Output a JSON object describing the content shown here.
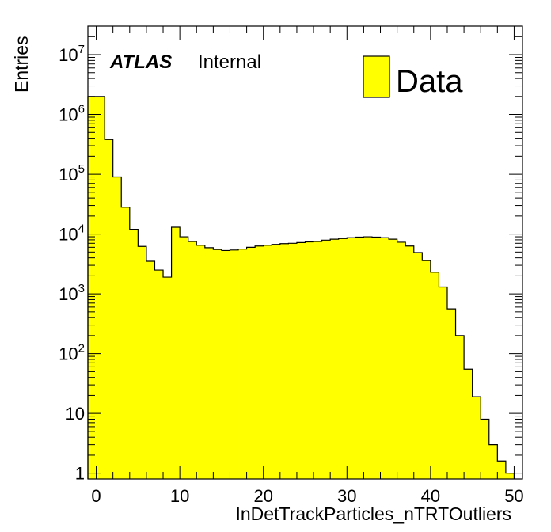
{
  "chart_data": {
    "type": "bar",
    "subtype": "histogram",
    "xlabel": "InDetTrackParticles_nTRTOutliers",
    "ylabel": "Entries",
    "y_scale": "log",
    "xlim": [
      -1,
      51
    ],
    "ylim": [
      0.8,
      30000000
    ],
    "bin_edges_start": -1,
    "bin_width": 1,
    "series": [
      {
        "name": "Data",
        "color": "#ffff00",
        "values": [
          2000000,
          2000000,
          380000,
          90000,
          28000,
          12000,
          6200,
          3500,
          2500,
          1900,
          13000,
          9000,
          7500,
          6500,
          5900,
          5500,
          5300,
          5400,
          5600,
          6000,
          6300,
          6500,
          6700,
          6900,
          7000,
          7200,
          7400,
          7500,
          7900,
          8200,
          8400,
          8700,
          8900,
          9000,
          8900,
          8700,
          8200,
          7300,
          6300,
          4900,
          3600,
          2300,
          1300,
          560,
          200,
          55,
          19,
          8,
          3,
          1.6,
          1
        ]
      }
    ],
    "x_ticks": [
      {
        "value": 0,
        "label": "0"
      },
      {
        "value": 10,
        "label": "10"
      },
      {
        "value": 20,
        "label": "20"
      },
      {
        "value": 30,
        "label": "30"
      },
      {
        "value": 40,
        "label": "40"
      },
      {
        "value": 50,
        "label": "50"
      }
    ],
    "y_ticks": [
      {
        "value": 1,
        "base": "1",
        "exp": ""
      },
      {
        "value": 10,
        "base": "10",
        "exp": ""
      },
      {
        "value": 100,
        "base": "10",
        "exp": "2"
      },
      {
        "value": 1000,
        "base": "10",
        "exp": "3"
      },
      {
        "value": 10000,
        "base": "10",
        "exp": "4"
      },
      {
        "value": 100000,
        "base": "10",
        "exp": "5"
      },
      {
        "value": 1000000,
        "base": "10",
        "exp": "6"
      },
      {
        "value": 10000000,
        "base": "10",
        "exp": "7"
      }
    ],
    "annotation": {
      "experiment": "ATLAS",
      "status": "Internal"
    },
    "legend": {
      "position": "top-right",
      "entries": [
        {
          "label": "Data",
          "color": "#ffff00"
        }
      ]
    }
  }
}
